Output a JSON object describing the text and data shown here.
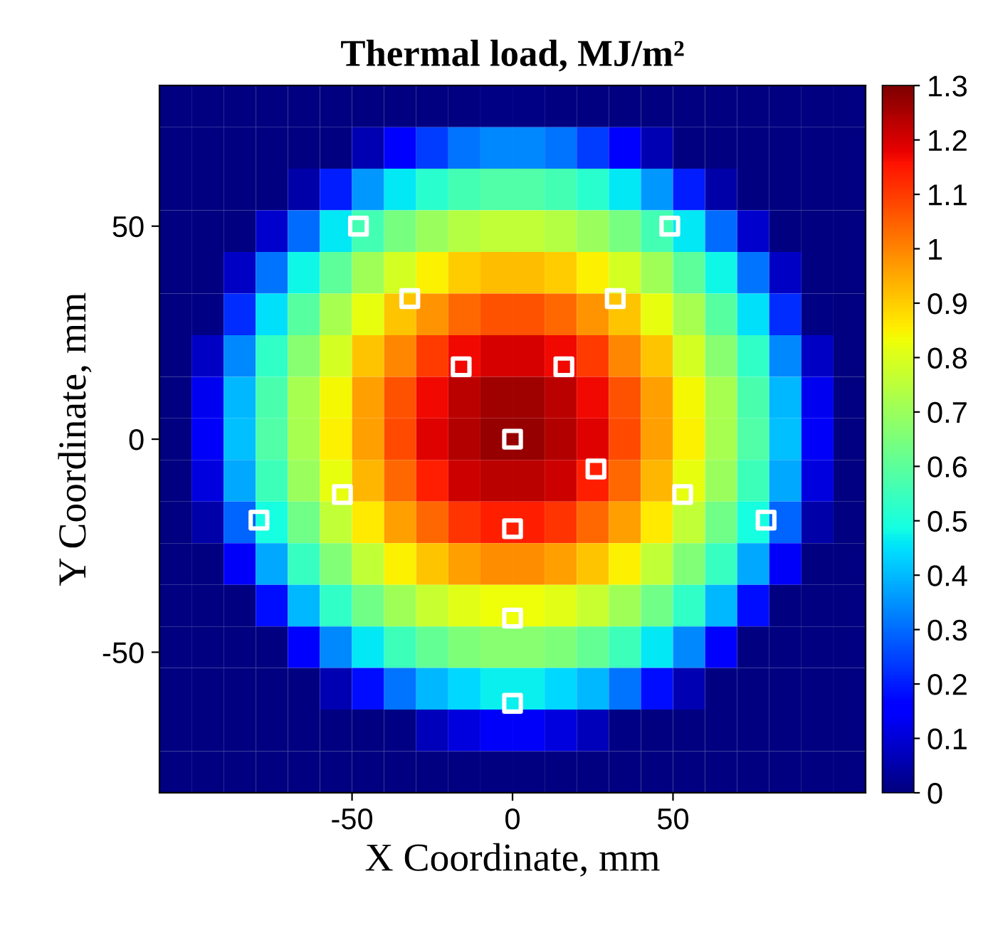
{
  "chart_data": {
    "type": "heatmap",
    "title": "Thermal load, MJ/m²",
    "xlabel": "X Coordinate, mm",
    "ylabel": "Y Coordinate, mm",
    "x": [
      -105,
      -95,
      -85,
      -75,
      -65,
      -55,
      -45,
      -35,
      -25,
      -15,
      -5,
      5,
      15,
      25,
      35,
      45,
      55,
      65,
      75,
      85,
      95,
      105
    ],
    "xlim": [
      -110,
      110
    ],
    "ylim": [
      -83,
      83
    ],
    "xticks": [
      -50,
      0,
      50
    ],
    "yticks": [
      -50,
      0,
      50
    ],
    "clim": [
      0,
      1.3
    ],
    "cticks": [
      0,
      0.1,
      0.2,
      0.3,
      0.4,
      0.5,
      0.6,
      0.7,
      0.8,
      0.9,
      1,
      1.1,
      1.2,
      1.3
    ],
    "cells": [
      [
        0,
        0,
        0,
        0,
        0,
        0,
        0,
        0,
        0,
        0,
        0.01,
        0.01,
        0,
        0,
        0,
        0,
        0,
        0,
        0,
        0,
        0,
        0
      ],
      [
        0,
        0,
        0,
        0,
        0,
        0,
        0.06,
        0.15,
        0.24,
        0.31,
        0.34,
        0.34,
        0.31,
        0.24,
        0.15,
        0.06,
        0,
        0,
        0,
        0,
        0,
        0
      ],
      [
        0,
        0,
        0,
        0,
        0.05,
        0.2,
        0.36,
        0.46,
        0.52,
        0.56,
        0.58,
        0.58,
        0.56,
        0.52,
        0.46,
        0.36,
        0.2,
        0.05,
        0,
        0,
        0,
        0
      ],
      [
        0,
        0,
        0,
        0.09,
        0.3,
        0.46,
        0.56,
        0.64,
        0.7,
        0.74,
        0.76,
        0.76,
        0.74,
        0.7,
        0.64,
        0.56,
        0.46,
        0.3,
        0.09,
        0,
        0,
        0
      ],
      [
        0,
        0,
        0.08,
        0.31,
        0.48,
        0.6,
        0.71,
        0.79,
        0.85,
        0.9,
        0.92,
        0.92,
        0.9,
        0.85,
        0.79,
        0.71,
        0.6,
        0.48,
        0.31,
        0.08,
        0,
        0
      ],
      [
        0,
        0.01,
        0.22,
        0.45,
        0.59,
        0.72,
        0.82,
        0.91,
        0.98,
        1.04,
        1.07,
        1.07,
        1.04,
        0.98,
        0.91,
        0.82,
        0.72,
        0.59,
        0.45,
        0.22,
        0.01,
        0
      ],
      [
        0,
        0.08,
        0.34,
        0.53,
        0.67,
        0.79,
        0.91,
        1.0,
        1.1,
        1.17,
        1.2,
        1.2,
        1.17,
        1.1,
        1.0,
        0.91,
        0.79,
        0.67,
        0.53,
        0.34,
        0.08,
        0
      ],
      [
        0,
        0.13,
        0.4,
        0.57,
        0.72,
        0.84,
        0.96,
        1.07,
        1.17,
        1.23,
        1.26,
        1.26,
        1.23,
        1.17,
        1.07,
        0.96,
        0.84,
        0.72,
        0.57,
        0.4,
        0.13,
        0
      ],
      [
        0,
        0.14,
        0.41,
        0.58,
        0.72,
        0.85,
        0.96,
        1.08,
        1.19,
        1.24,
        1.27,
        1.27,
        1.24,
        1.19,
        1.08,
        0.96,
        0.85,
        0.72,
        0.58,
        0.41,
        0.14,
        0
      ],
      [
        0,
        0.11,
        0.38,
        0.55,
        0.7,
        0.82,
        0.93,
        1.04,
        1.14,
        1.21,
        1.23,
        1.23,
        1.21,
        1.14,
        1.04,
        0.93,
        0.82,
        0.7,
        0.55,
        0.38,
        0.11,
        0
      ],
      [
        0,
        0.05,
        0.29,
        0.49,
        0.63,
        0.76,
        0.86,
        0.96,
        1.04,
        1.11,
        1.14,
        1.14,
        1.11,
        1.04,
        0.96,
        0.86,
        0.76,
        0.63,
        0.49,
        0.29,
        0.05,
        0
      ],
      [
        0,
        0,
        0.14,
        0.38,
        0.54,
        0.66,
        0.76,
        0.85,
        0.91,
        0.96,
        0.99,
        0.99,
        0.96,
        0.91,
        0.85,
        0.76,
        0.66,
        0.54,
        0.38,
        0.14,
        0,
        0
      ],
      [
        0,
        0,
        0,
        0.18,
        0.4,
        0.53,
        0.63,
        0.71,
        0.77,
        0.81,
        0.83,
        0.83,
        0.81,
        0.77,
        0.71,
        0.63,
        0.53,
        0.4,
        0.18,
        0,
        0,
        0
      ],
      [
        0,
        0,
        0,
        0,
        0.15,
        0.34,
        0.46,
        0.55,
        0.61,
        0.65,
        0.67,
        0.67,
        0.65,
        0.61,
        0.55,
        0.46,
        0.34,
        0.15,
        0,
        0,
        0,
        0
      ],
      [
        0,
        0,
        0,
        0,
        0,
        0.06,
        0.18,
        0.31,
        0.4,
        0.44,
        0.47,
        0.47,
        0.44,
        0.4,
        0.31,
        0.18,
        0.06,
        0,
        0,
        0,
        0,
        0
      ],
      [
        0,
        0,
        0,
        0,
        0,
        0,
        0,
        0.01,
        0.07,
        0.11,
        0.14,
        0.14,
        0.11,
        0.07,
        0.01,
        0,
        0,
        0,
        0,
        0,
        0,
        0
      ],
      [
        0,
        0,
        0,
        0,
        0,
        0,
        0,
        0,
        0,
        0,
        0,
        0,
        0,
        0,
        0,
        0,
        0,
        0,
        0,
        0,
        0,
        0
      ]
    ],
    "series": [
      {
        "type": "scatter",
        "color": "#ffffff",
        "marker": "square",
        "x": [
          -48,
          49,
          -32,
          32,
          -16,
          16,
          0,
          26,
          -53,
          0,
          53,
          -79,
          79,
          0,
          0
        ],
        "values": [
          50,
          50,
          33,
          33,
          17,
          17,
          0,
          -7,
          -13,
          -21,
          -13,
          -19,
          -19,
          -42,
          -62
        ]
      }
    ]
  }
}
